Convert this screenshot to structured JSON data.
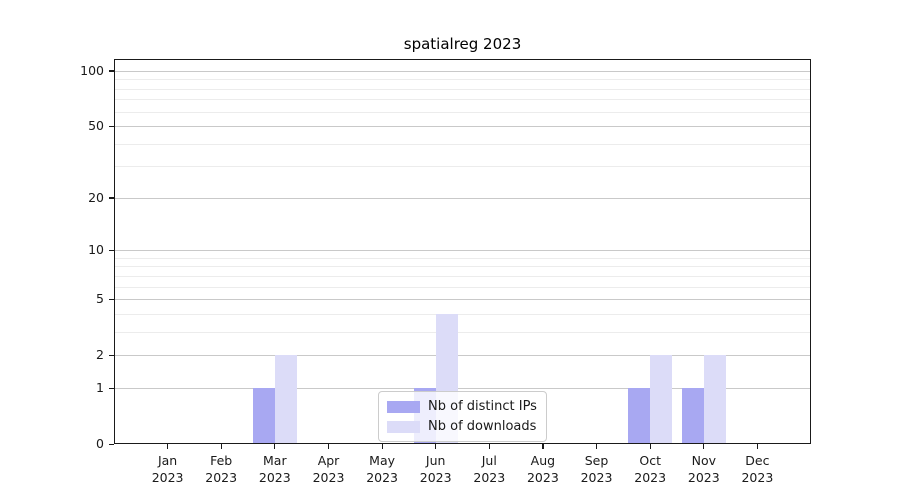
{
  "chart_data": {
    "type": "bar",
    "title": "spatialreg 2023",
    "categories": [
      {
        "month": "Jan",
        "year": "2023"
      },
      {
        "month": "Feb",
        "year": "2023"
      },
      {
        "month": "Mar",
        "year": "2023"
      },
      {
        "month": "Apr",
        "year": "2023"
      },
      {
        "month": "May",
        "year": "2023"
      },
      {
        "month": "Jun",
        "year": "2023"
      },
      {
        "month": "Jul",
        "year": "2023"
      },
      {
        "month": "Aug",
        "year": "2023"
      },
      {
        "month": "Sep",
        "year": "2023"
      },
      {
        "month": "Oct",
        "year": "2023"
      },
      {
        "month": "Nov",
        "year": "2023"
      },
      {
        "month": "Dec",
        "year": "2023"
      }
    ],
    "series": [
      {
        "name": "Nb of distinct IPs",
        "color": "#a8a8f2",
        "values": [
          0,
          0,
          1,
          0,
          0,
          1,
          0,
          0,
          0,
          1,
          1,
          0
        ]
      },
      {
        "name": "Nb of downloads",
        "color": "#dcdcf8",
        "values": [
          0,
          0,
          2,
          0,
          0,
          4,
          0,
          0,
          0,
          2,
          2,
          0
        ]
      }
    ],
    "xlabel": "",
    "ylabel": "",
    "yscale": "log1p",
    "ylim": [
      0,
      116
    ],
    "yticks": [
      0,
      1,
      2,
      5,
      10,
      20,
      50,
      100
    ],
    "minor_gridlines": [
      3,
      4,
      6,
      7,
      8,
      9,
      30,
      40,
      60,
      70,
      80,
      90
    ],
    "grid": "horizontal",
    "legend_position": "inside-bottom-center"
  },
  "colors": {
    "bar_distinct_ips": "#a8a8f2",
    "bar_downloads": "#dcdcf8",
    "major_gridline": "#c9c9c9",
    "minor_gridline": "#ececec",
    "axis": "#1a1a1a"
  }
}
